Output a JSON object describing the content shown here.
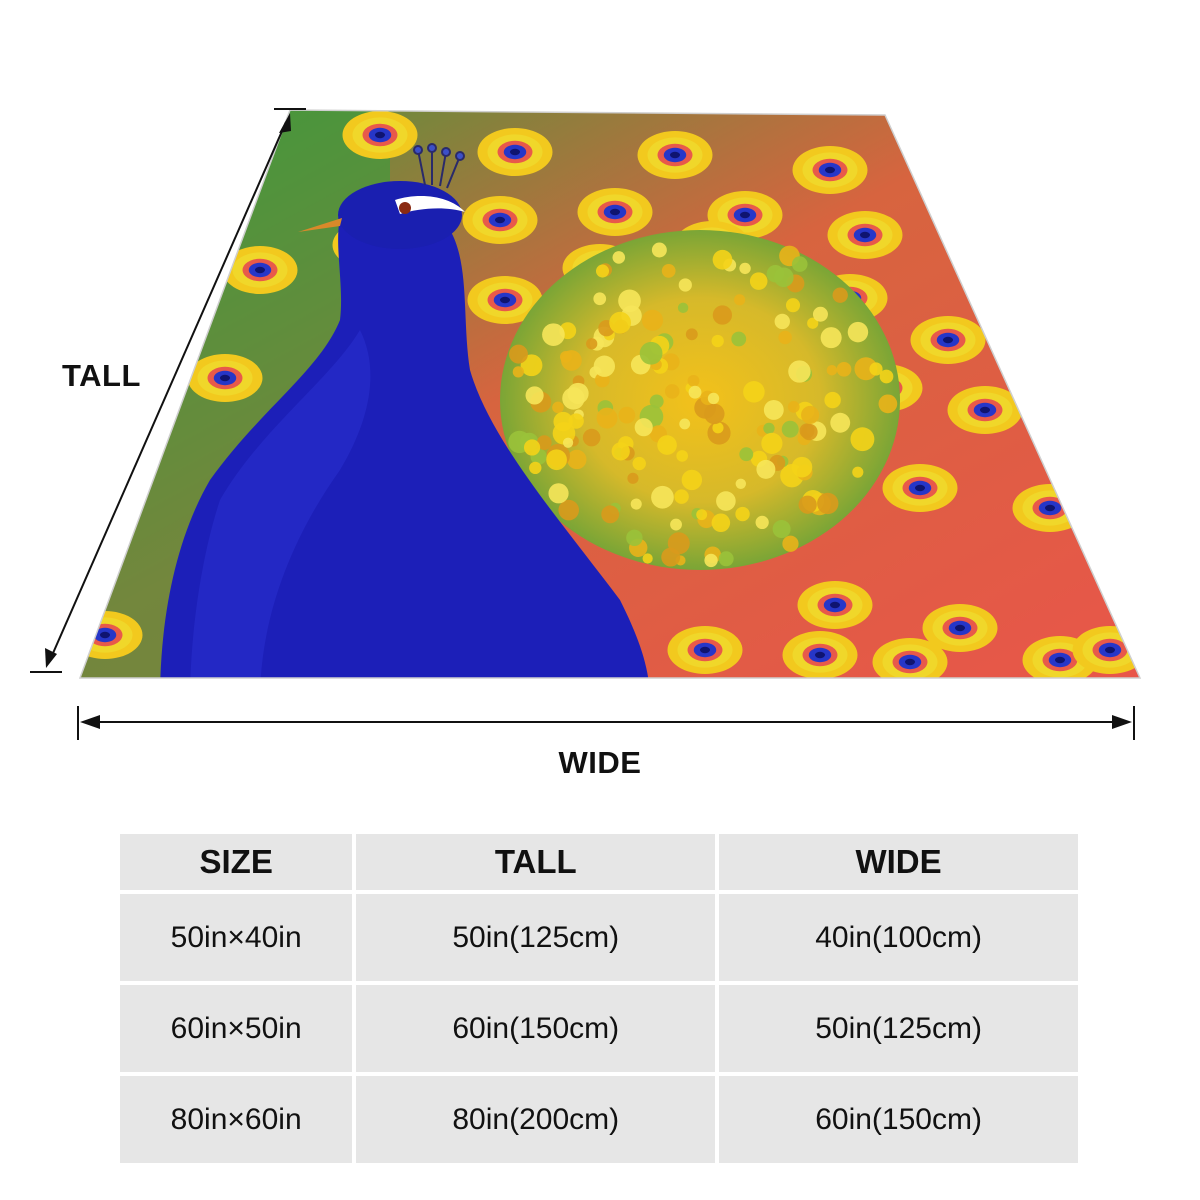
{
  "labels": {
    "tall": "TALL",
    "wide": "WIDE"
  },
  "table": {
    "headers": [
      "SIZE",
      "TALL",
      "WIDE"
    ],
    "rows": [
      [
        "50in×40in",
        "50in(125cm)",
        "40in(100cm)"
      ],
      [
        "60in×50in",
        "60in(150cm)",
        "50in(125cm)"
      ],
      [
        "80in×60in",
        "80in(200cm)",
        "60in(150cm)"
      ]
    ]
  },
  "colors": {
    "peacock_blue": "#1a1fb8",
    "feather_green": "#3f9a3a",
    "feather_red": "#e8584a",
    "feather_yellow": "#f0d21c",
    "table_cell": "#e6e6e6"
  }
}
